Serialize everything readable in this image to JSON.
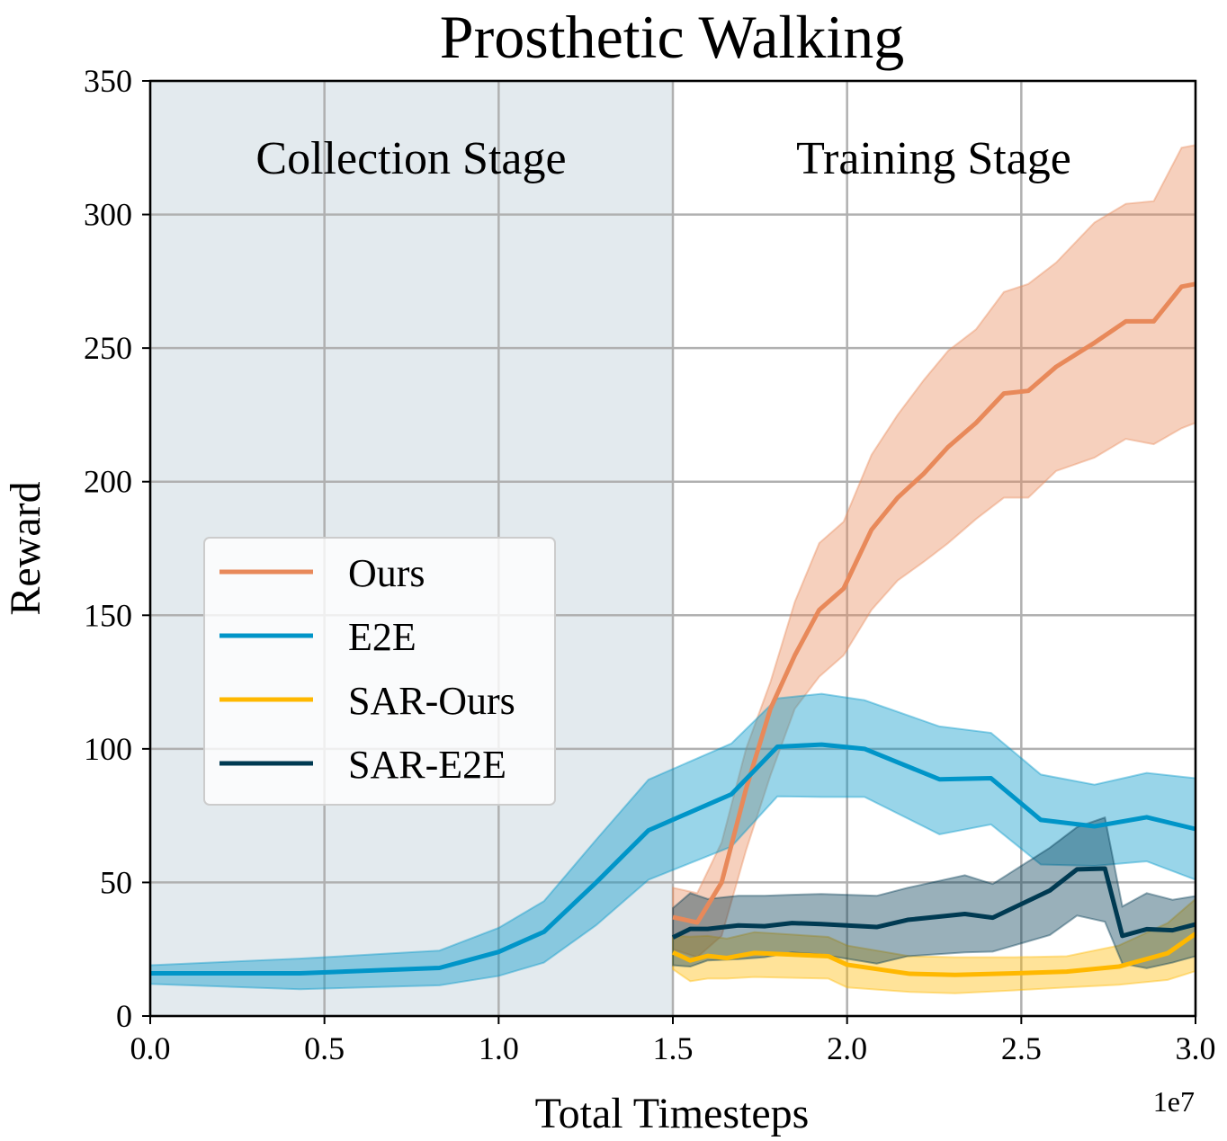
{
  "chart_data": {
    "type": "line",
    "title": "Prosthetic Walking",
    "xlabel": "Total Timesteps",
    "ylabel": "Reward",
    "x_scale_label": "1e7",
    "xlim": [
      0,
      3.0
    ],
    "ylim": [
      0,
      350
    ],
    "xticks": [
      "0.0",
      "0.5",
      "1.0",
      "1.5",
      "2.0",
      "2.5",
      "3.0"
    ],
    "yticks": [
      "0",
      "50",
      "100",
      "150",
      "200",
      "250",
      "300",
      "350"
    ],
    "grid": true,
    "legend_position": "center-left",
    "regions": [
      {
        "label": "Collection Stage",
        "x_range": [
          0,
          1.5
        ],
        "color": "#e3eaee"
      },
      {
        "label": "Training Stage",
        "x_range": [
          1.5,
          3.0
        ],
        "color": "#ffffff"
      }
    ],
    "series": [
      {
        "name": "Ours",
        "color": "#e8895a",
        "x": [
          1.5,
          1.57,
          1.64,
          1.71,
          1.78,
          1.85,
          1.92,
          1.99,
          2.07,
          2.145,
          2.22,
          2.29,
          2.37,
          2.45,
          2.52,
          2.6,
          2.71,
          2.8,
          2.88,
          2.96,
          3.0
        ],
        "mean": [
          37,
          35,
          50,
          85,
          115,
          135,
          152,
          160,
          182,
          194,
          203,
          213,
          222,
          233,
          234,
          243,
          252,
          260,
          260,
          273,
          274
        ],
        "upper": [
          48,
          46,
          65,
          100,
          125,
          155,
          177,
          185,
          210,
          225,
          238,
          249,
          257,
          271,
          274,
          282,
          297,
          304,
          305,
          325,
          326
        ],
        "lower": [
          25,
          22,
          30,
          62,
          90,
          115,
          127,
          135,
          152,
          163,
          170,
          177,
          186,
          194,
          194,
          204,
          209,
          216,
          214,
          220,
          222
        ]
      },
      {
        "name": "E2E",
        "color": "#0095c8",
        "x": [
          0,
          0.43,
          0.83,
          1.0,
          1.13,
          1.28,
          1.43,
          1.668,
          1.8,
          1.927,
          2.05,
          2.265,
          2.413,
          2.556,
          2.71,
          2.86,
          3.0
        ],
        "mean": [
          16,
          16,
          18,
          24,
          31.5,
          50,
          69.5,
          83,
          100.8,
          101.6,
          100,
          88.6,
          89,
          73.4,
          71,
          74.4,
          70
        ],
        "upper": [
          19,
          21.5,
          24.5,
          33,
          43,
          66,
          88.5,
          102,
          118.9,
          120.6,
          118.2,
          108.4,
          106,
          90.4,
          86.6,
          91,
          89
        ],
        "lower": [
          12,
          10,
          11.5,
          15,
          20,
          34,
          51,
          63.4,
          82.2,
          82,
          82,
          68,
          71.7,
          56.7,
          56.2,
          57.9,
          51
        ]
      },
      {
        "name": "SAR-Ours",
        "color": "#ffb800",
        "x": [
          1.5,
          1.55,
          1.6,
          1.655,
          1.734,
          1.946,
          2.0,
          2.18,
          2.31,
          2.48,
          2.63,
          2.78,
          2.92,
          3.0
        ],
        "mean": [
          23.8,
          20.8,
          22.5,
          21.7,
          23.6,
          22.4,
          19.2,
          15.8,
          15.4,
          16,
          16.6,
          18.5,
          23.5,
          30.8
        ],
        "upper": [
          30,
          29.7,
          30,
          29,
          31.4,
          29.6,
          26.4,
          22.4,
          22,
          22,
          22.4,
          26.4,
          34.8,
          43.8
        ],
        "lower": [
          17.5,
          13,
          14,
          14,
          14.6,
          14,
          10.7,
          9,
          8.5,
          9.6,
          10.7,
          11.7,
          13.5,
          16.8
        ]
      },
      {
        "name": "SAR-E2E",
        "color": "#003a52",
        "x": [
          1.5,
          1.55,
          1.6,
          1.688,
          1.763,
          1.842,
          1.926,
          2.085,
          2.174,
          2.338,
          2.418,
          2.582,
          2.66,
          2.74,
          2.79,
          2.86,
          2.934,
          3.0
        ],
        "mean": [
          29.4,
          32.6,
          32.6,
          33.9,
          33.6,
          34.8,
          34.4,
          33.3,
          36,
          38.2,
          36.8,
          47,
          54.9,
          55.2,
          30,
          32.5,
          32.1,
          34.3
        ],
        "upper": [
          40.4,
          46,
          43.8,
          45,
          45,
          45.4,
          45.7,
          45,
          48,
          52.7,
          49.4,
          63,
          70.7,
          74.3,
          41,
          46,
          43.5,
          44.9
        ],
        "lower": [
          19,
          18.5,
          20.8,
          21.3,
          22,
          23.8,
          23,
          19.6,
          22.4,
          23.8,
          24.1,
          30.3,
          37.6,
          35.3,
          19.6,
          17.9,
          20,
          22.4
        ]
      }
    ]
  }
}
